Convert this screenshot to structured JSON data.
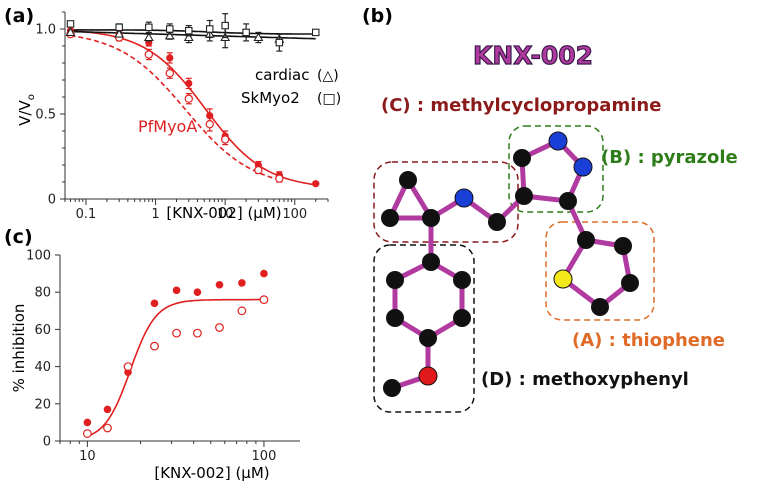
{
  "panels": {
    "a": "(a)",
    "b": "(b)",
    "c": "(c)"
  },
  "chart_data": [
    {
      "panel": "(a)",
      "type": "scatter",
      "xscale": "log",
      "xlim": [
        0.05,
        300
      ],
      "ylim": [
        0,
        1.1
      ],
      "xlabel": "[KNX-002] (μM)",
      "ylabel": "V/V",
      "ylabel_sub": "o",
      "xticks": [
        {
          "v": 0.1,
          "label": "0.1"
        },
        {
          "v": 1,
          "label": "1"
        },
        {
          "v": 10,
          "label": "10"
        },
        {
          "v": 100,
          "label": "100"
        }
      ],
      "yticks": [
        {
          "v": 0,
          "label": "0"
        },
        {
          "v": 0.5,
          "label": "0.5"
        },
        {
          "v": 1,
          "label": "1.0"
        }
      ],
      "series": [
        {
          "name": "PfMyoA",
          "marker": "filled-circle",
          "color": "#e02020",
          "x": [
            0.06,
            0.3,
            0.8,
            1.6,
            3,
            6,
            10,
            30,
            60,
            200
          ],
          "y": [
            0.99,
            0.97,
            0.92,
            0.83,
            0.68,
            0.49,
            0.37,
            0.2,
            0.14,
            0.09
          ],
          "err": [
            0.01,
            0.01,
            0.02,
            0.03,
            0.03,
            0.04,
            0.03,
            0.02,
            0.02,
            0.01
          ]
        },
        {
          "name": "",
          "marker": "open-circle",
          "color": "#e02020",
          "x": [
            0.06,
            0.3,
            0.8,
            1.6,
            3,
            6,
            10,
            30,
            60
          ],
          "y": [
            0.97,
            0.95,
            0.85,
            0.74,
            0.59,
            0.44,
            0.35,
            0.17,
            0.12
          ],
          "err": [
            0.01,
            0.02,
            0.03,
            0.03,
            0.03,
            0.04,
            0.03,
            0.02,
            0.02
          ]
        },
        {
          "name": "cardiac",
          "marker": "open-triangle",
          "color": "#222222",
          "x": [
            0.06,
            0.3,
            0.8,
            1.6,
            3,
            6,
            10,
            30,
            60
          ],
          "y": [
            0.98,
            0.97,
            0.95,
            0.96,
            0.95,
            0.97,
            0.95,
            0.95,
            0.94
          ],
          "err": [
            0.01,
            0.01,
            0.02,
            0.02,
            0.03,
            0.04,
            0.06,
            0.03,
            0.03
          ]
        },
        {
          "name": "SkMyo2",
          "marker": "open-square",
          "color": "#222222",
          "x": [
            0.06,
            0.3,
            0.8,
            1.6,
            3,
            6,
            10,
            20,
            60,
            200
          ],
          "y": [
            1.03,
            1.01,
            1.01,
            1.0,
            0.99,
            1.0,
            1.02,
            0.98,
            0.92,
            0.98
          ],
          "err": [
            0.01,
            0.02,
            0.03,
            0.03,
            0.03,
            0.05,
            0.07,
            0.05,
            0.05,
            0.01
          ]
        }
      ],
      "legend": [
        {
          "text": "cardiac",
          "symbol": "(△)"
        },
        {
          "text": "SkMyo2",
          "symbol": "(□)"
        }
      ],
      "annotation": "PfMyoA"
    },
    {
      "panel": "(c)",
      "type": "scatter",
      "xscale": "log",
      "xlim": [
        7,
        160
      ],
      "ylim": [
        0,
        100
      ],
      "xlabel": "[KNX-002] (μM)",
      "ylabel": "% inhibition",
      "xticks": [
        {
          "v": 10,
          "label": "10"
        },
        {
          "v": 100,
          "label": "100"
        }
      ],
      "yticks": [
        {
          "v": 0,
          "label": "0"
        },
        {
          "v": 20,
          "label": "20"
        },
        {
          "v": 40,
          "label": "40"
        },
        {
          "v": 60,
          "label": "60"
        },
        {
          "v": 80,
          "label": "80"
        },
        {
          "v": 100,
          "label": "100"
        }
      ],
      "series": [
        {
          "name": "",
          "marker": "filled-circle",
          "color": "#e02020",
          "x": [
            10,
            13,
            17,
            24,
            32,
            42,
            56,
            75,
            100
          ],
          "y": [
            10,
            17,
            37,
            74,
            81,
            80,
            84,
            85,
            90
          ]
        },
        {
          "name": "",
          "marker": "open-circle",
          "color": "#e02020",
          "x": [
            10,
            13,
            17,
            24,
            32,
            42,
            56,
            75,
            100
          ],
          "y": [
            4,
            7,
            40,
            51,
            58,
            58,
            61,
            70,
            76
          ]
        }
      ]
    }
  ],
  "molecule": {
    "title": "KNX-002",
    "groups": [
      {
        "id": "C",
        "label": "(C) : methylcyclopropamine",
        "color": "#8b1a1a"
      },
      {
        "id": "B",
        "label": "(B) : pyrazole",
        "color": "#2e7d1a"
      },
      {
        "id": "A",
        "label": "(A) : thiophene",
        "color": "#e06a28"
      },
      {
        "id": "D",
        "label": "(D) : methoxyphenyl",
        "color": "#111111"
      }
    ]
  }
}
